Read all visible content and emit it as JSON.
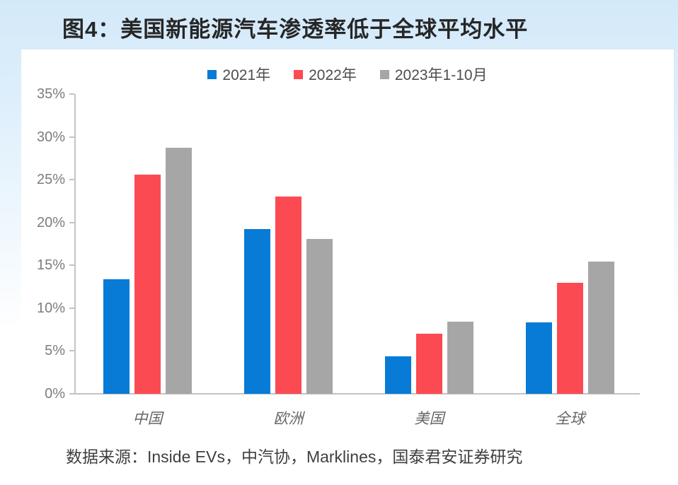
{
  "page": {
    "title": "图4：美国新能源汽车渗透率低于全球平均水平",
    "source": "数据来源：Inside EVs，中汽协，Marklines，国泰君安证券研究"
  },
  "colors": {
    "background_top": "#d3e9f9",
    "panel": "#ffffff",
    "title_text": "#262626",
    "axis": "#c3c3c3",
    "tick_label": "#7d7d7d",
    "x_label": "#666666",
    "legend_text": "#4d4d4d",
    "source_text": "#3f3f3f",
    "series_2021": "#087bd6",
    "series_2022": "#fc4a52",
    "series_2023": "#a6a6a6"
  },
  "chart_data": {
    "type": "bar",
    "title": "图4：美国新能源汽车渗透率低于全球平均水平",
    "categories": [
      "中国",
      "欧洲",
      "美国",
      "全球"
    ],
    "series": [
      {
        "name": "2021年",
        "color": "#087bd6",
        "values": [
          13.4,
          19.2,
          4.4,
          8.3
        ]
      },
      {
        "name": "2022年",
        "color": "#fc4a52",
        "values": [
          25.6,
          23.0,
          7.0,
          13.0
        ]
      },
      {
        "name": "2023年1-10月",
        "color": "#a6a6a6",
        "values": [
          28.7,
          18.1,
          8.4,
          15.4
        ]
      }
    ],
    "xlabel": "",
    "ylabel": "",
    "ylim": [
      0,
      35
    ],
    "ytick_step": 5,
    "ytick_labels": [
      "0%",
      "5%",
      "10%",
      "15%",
      "20%",
      "25%",
      "30%",
      "35%"
    ],
    "grid": false,
    "legend_position": "top"
  }
}
